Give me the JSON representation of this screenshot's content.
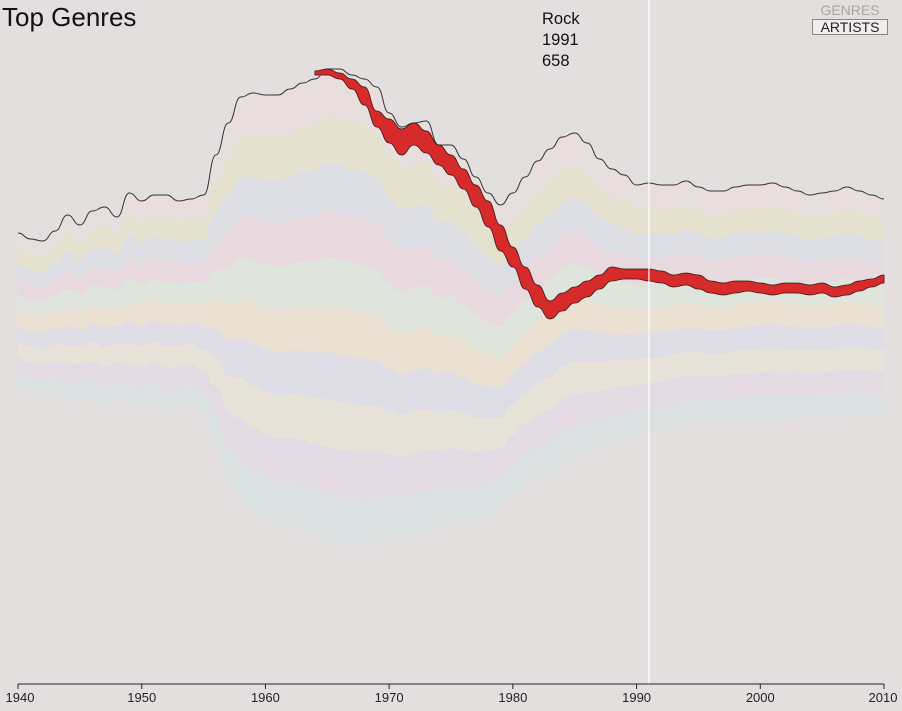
{
  "title": "Top Genres",
  "toggle": {
    "genres_label": "GENRES",
    "artists_label": "ARTISTS",
    "active": "ARTISTS"
  },
  "tooltip": {
    "name": "Rock",
    "year": "1991",
    "value": "658"
  },
  "colors": {
    "background": "#e3dfde",
    "highlight": "#d72b2b",
    "outline": "#333333",
    "cursor": "#ffffff"
  },
  "chart_data": {
    "type": "area",
    "style": "streamgraph",
    "xlim": [
      1940,
      2010
    ],
    "x_ticks": [
      1940,
      1950,
      1960,
      1970,
      1980,
      1990,
      2000,
      2010
    ],
    "cursor_year": 1991,
    "highlighted_series": "Rock",
    "x": [
      1940,
      1941,
      1942,
      1943,
      1944,
      1945,
      1946,
      1947,
      1948,
      1949,
      1950,
      1951,
      1952,
      1953,
      1954,
      1955,
      1956,
      1957,
      1958,
      1959,
      1960,
      1961,
      1962,
      1963,
      1964,
      1965,
      1966,
      1967,
      1968,
      1969,
      1970,
      1971,
      1972,
      1973,
      1974,
      1975,
      1976,
      1977,
      1978,
      1979,
      1980,
      1981,
      1982,
      1983,
      1984,
      1985,
      1986,
      1987,
      1988,
      1989,
      1990,
      1991,
      1992,
      1993,
      1994,
      1995,
      1996,
      1997,
      1998,
      1999,
      2000,
      2001,
      2002,
      2003,
      2004,
      2005,
      2006,
      2007,
      2008,
      2009,
      2010
    ],
    "stream_top": [
      0.61,
      0.58,
      0.57,
      0.62,
      0.7,
      0.65,
      0.72,
      0.74,
      0.69,
      0.81,
      0.77,
      0.8,
      0.8,
      0.77,
      0.78,
      0.8,
      1.0,
      1.16,
      1.29,
      1.31,
      1.3,
      1.3,
      1.33,
      1.36,
      1.38,
      1.43,
      1.43,
      1.4,
      1.38,
      1.34,
      1.21,
      1.14,
      1.16,
      1.17,
      1.05,
      1.05,
      0.98,
      0.89,
      0.81,
      0.75,
      0.81,
      0.89,
      0.97,
      1.03,
      1.09,
      1.11,
      1.06,
      0.98,
      0.93,
      0.9,
      0.85,
      0.86,
      0.85,
      0.85,
      0.87,
      0.84,
      0.82,
      0.82,
      0.84,
      0.85,
      0.85,
      0.86,
      0.84,
      0.82,
      0.8,
      0.81,
      0.82,
      0.84,
      0.82,
      0.8,
      0.78
    ],
    "stream_bottom": [
      -0.17,
      -0.19,
      -0.2,
      -0.19,
      -0.23,
      -0.22,
      -0.22,
      -0.26,
      -0.22,
      -0.26,
      -0.27,
      -0.25,
      -0.28,
      -0.27,
      -0.25,
      -0.3,
      -0.45,
      -0.65,
      -0.72,
      -0.78,
      -0.82,
      -0.85,
      -0.85,
      -0.87,
      -0.9,
      -0.93,
      -0.95,
      -0.95,
      -0.95,
      -0.94,
      -0.92,
      -0.92,
      -0.9,
      -0.89,
      -0.86,
      -0.84,
      -0.84,
      -0.83,
      -0.8,
      -0.77,
      -0.7,
      -0.65,
      -0.62,
      -0.6,
      -0.55,
      -0.52,
      -0.5,
      -0.47,
      -0.44,
      -0.42,
      -0.4,
      -0.39,
      -0.38,
      -0.36,
      -0.35,
      -0.34,
      -0.34,
      -0.34,
      -0.33,
      -0.33,
      -0.32,
      -0.32,
      -0.32,
      -0.31,
      -0.31,
      -0.31,
      -0.31,
      -0.3,
      -0.3,
      -0.3,
      -0.3
    ],
    "series": [
      {
        "name": "Rock",
        "color": "#d72b2b",
        "top": [
          null,
          null,
          null,
          null,
          null,
          null,
          null,
          null,
          null,
          null,
          null,
          null,
          null,
          null,
          null,
          null,
          null,
          null,
          null,
          null,
          null,
          null,
          null,
          null,
          1.42,
          1.43,
          1.41,
          1.38,
          1.34,
          1.22,
          1.18,
          1.13,
          1.16,
          1.12,
          1.05,
          1.0,
          0.93,
          0.85,
          0.77,
          0.65,
          0.54,
          0.44,
          0.35,
          0.27,
          0.31,
          0.34,
          0.37,
          0.4,
          0.44,
          0.43,
          0.43,
          0.43,
          0.42,
          0.4,
          0.41,
          0.4,
          0.37,
          0.36,
          0.37,
          0.37,
          0.36,
          0.35,
          0.36,
          0.36,
          0.35,
          0.36,
          0.34,
          0.35,
          0.37,
          0.38,
          0.4
        ],
        "bottom": [
          null,
          null,
          null,
          null,
          null,
          null,
          null,
          null,
          null,
          null,
          null,
          null,
          null,
          null,
          null,
          null,
          null,
          null,
          null,
          null,
          null,
          null,
          null,
          null,
          1.4,
          1.4,
          1.38,
          1.33,
          1.25,
          1.14,
          1.06,
          1.0,
          1.05,
          1.01,
          0.95,
          0.9,
          0.83,
          0.74,
          0.64,
          0.52,
          0.44,
          0.33,
          0.24,
          0.18,
          0.22,
          0.26,
          0.29,
          0.33,
          0.37,
          0.38,
          0.38,
          0.37,
          0.36,
          0.34,
          0.35,
          0.33,
          0.31,
          0.3,
          0.31,
          0.32,
          0.31,
          0.3,
          0.31,
          0.31,
          0.3,
          0.31,
          0.29,
          0.3,
          0.32,
          0.34,
          0.36
        ]
      }
    ]
  }
}
